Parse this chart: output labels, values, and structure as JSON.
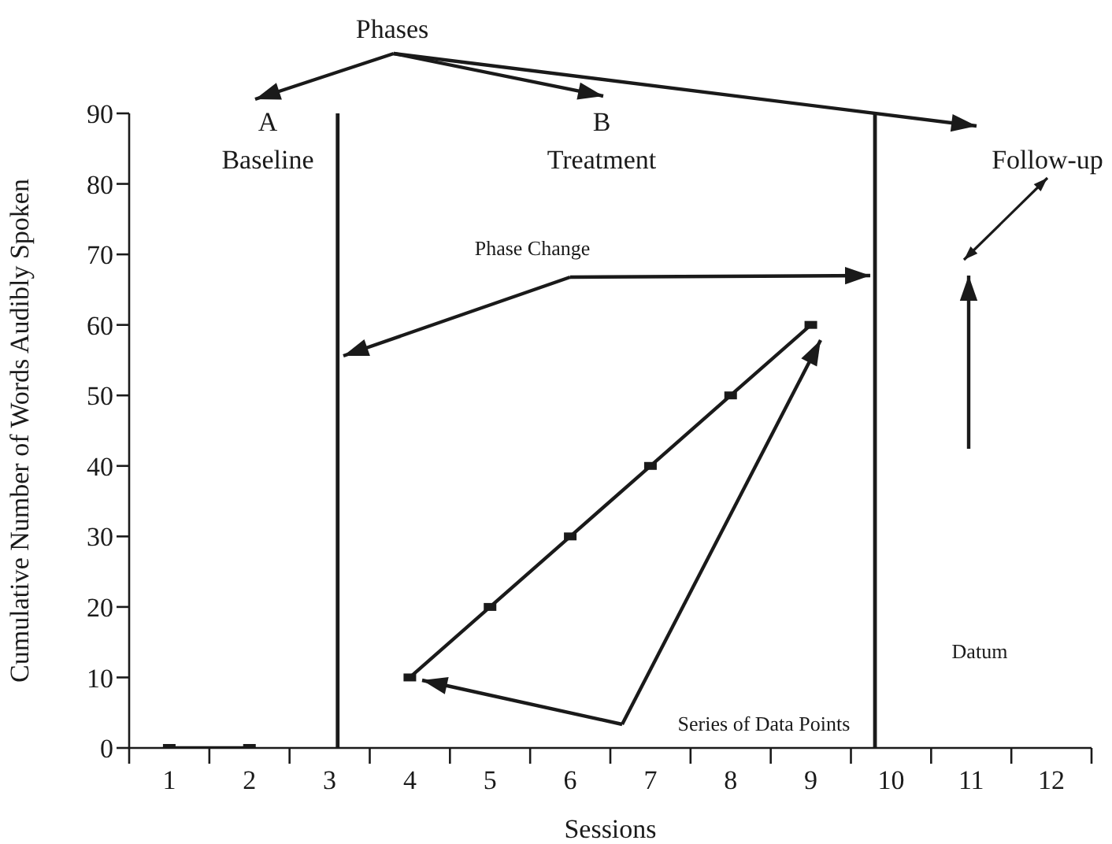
{
  "chart_data": {
    "type": "line",
    "xlabel": "Sessions",
    "ylabel": "Cumulative Number of Words Audibly Spoken",
    "x": [
      1,
      2,
      3,
      4,
      5,
      6,
      7,
      8,
      9
    ],
    "values": [
      0,
      0,
      null,
      10,
      20,
      30,
      40,
      50,
      60
    ],
    "color": "#1a1a1a",
    "marker": "square",
    "line_style": "solid",
    "grid": false,
    "legend": false,
    "xlim": [
      0.5,
      12.5
    ],
    "xticks": [
      {
        "value": 0.5,
        "label": null
      },
      1,
      {
        "value": 1.5,
        "label": null
      },
      2,
      {
        "value": 2.5,
        "label": null
      },
      3,
      {
        "value": 3.5,
        "label": null
      },
      4,
      {
        "value": 4.5,
        "label": null
      },
      5,
      {
        "value": 5.5,
        "label": null
      },
      6,
      {
        "value": 6.5,
        "label": null
      },
      7,
      {
        "value": 7.5,
        "label": null
      },
      8,
      {
        "value": 8.5,
        "label": null
      },
      9,
      {
        "value": 9.5,
        "label": null
      },
      10,
      {
        "value": 10.5,
        "label": null
      },
      11,
      {
        "value": 11.5,
        "label": null
      },
      12,
      {
        "value": 12.5,
        "label": null
      }
    ],
    "ylim": [
      0,
      90
    ],
    "yticks": [
      0,
      10,
      20,
      30,
      40,
      50,
      60,
      70,
      80,
      90
    ],
    "ref_lines": [
      {
        "axis": "x",
        "value": 3.1,
        "color": "#1a1a1a"
      },
      {
        "axis": "x",
        "value": 9.8,
        "color": "#1a1a1a"
      }
    ],
    "annotations": [
      "Phases",
      "A",
      "Baseline",
      "B",
      "Treatment",
      "Follow-up",
      {
        "text": "Phase Change",
        "x": 9.8,
        "y": 67
      },
      "Datum",
      "Series of Data Points"
    ]
  }
}
